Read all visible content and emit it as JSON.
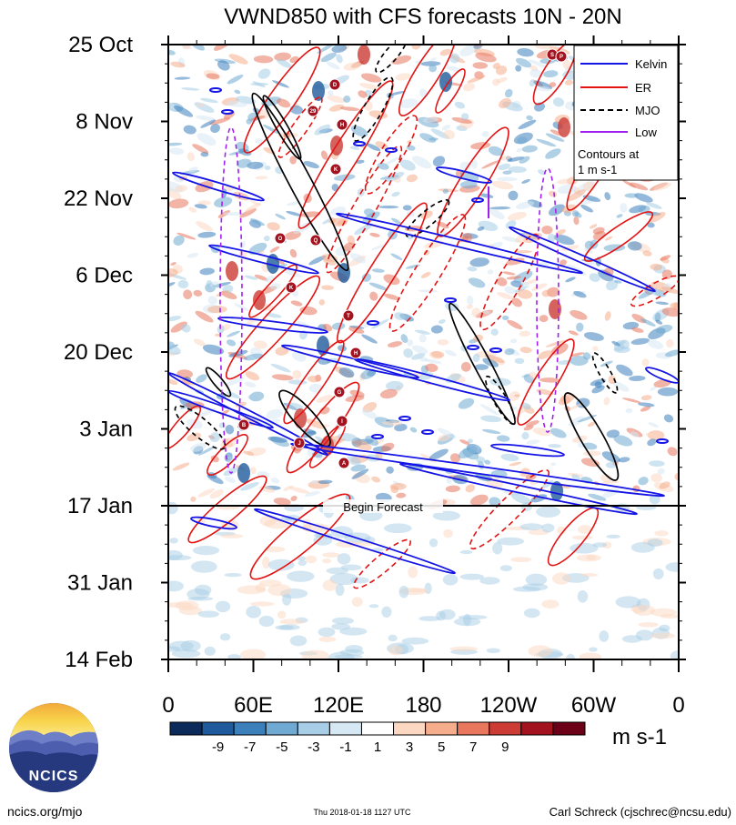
{
  "chart_data": {
    "type": "heatmap",
    "title": "VWND850 with CFS forecasts  10N - 20N",
    "x_ticks": [
      "0",
      "60E",
      "120E",
      "180",
      "120W",
      "60W",
      "0"
    ],
    "y_ticks": [
      "25 Oct",
      "8 Nov",
      "22 Nov",
      "6 Dec",
      "20 Dec",
      "3 Jan",
      "17 Jan",
      "31 Jan",
      "14 Feb"
    ],
    "units": "m s-1",
    "colorbar": {
      "labels": [
        "-9",
        "-7",
        "-5",
        "-3",
        "-1",
        "1",
        "3",
        "5",
        "7",
        "9"
      ],
      "colors": [
        "#0b2a5a",
        "#1f5a9c",
        "#3c80bb",
        "#70aad2",
        "#a8cde6",
        "#d6e8f3",
        "#ffffff",
        "#fcd7c2",
        "#f6ad8c",
        "#e8775e",
        "#cc3b34",
        "#a3121f",
        "#6b0016"
      ]
    },
    "legend": [
      {
        "label": "Kelvin",
        "color": "#1414e6",
        "style": "solid"
      },
      {
        "label": "ER",
        "color": "#e31414",
        "style": "solid"
      },
      {
        "label": "MJO",
        "color": "#000000",
        "style": "dashed"
      },
      {
        "label": "Low",
        "color": "#a020f0",
        "style": "solid"
      }
    ],
    "legend_note": [
      "Contours at",
      "1 m s-1"
    ],
    "forecast_label": "Begin Forecast",
    "forecast_start": "17 Jan",
    "storm_labels": [
      "S",
      "P",
      "D",
      "29",
      "H",
      "K",
      "O",
      "Q",
      "K",
      "T",
      "H",
      "G",
      "I",
      "J",
      "A",
      "B"
    ]
  },
  "footer": {
    "left": "ncics.org/mjo",
    "center": "Thu 2018-01-18 1127 UTC",
    "right": "Carl Schreck (cjschrec@ncsu.edu)"
  },
  "logo": {
    "text": "NCICS"
  }
}
